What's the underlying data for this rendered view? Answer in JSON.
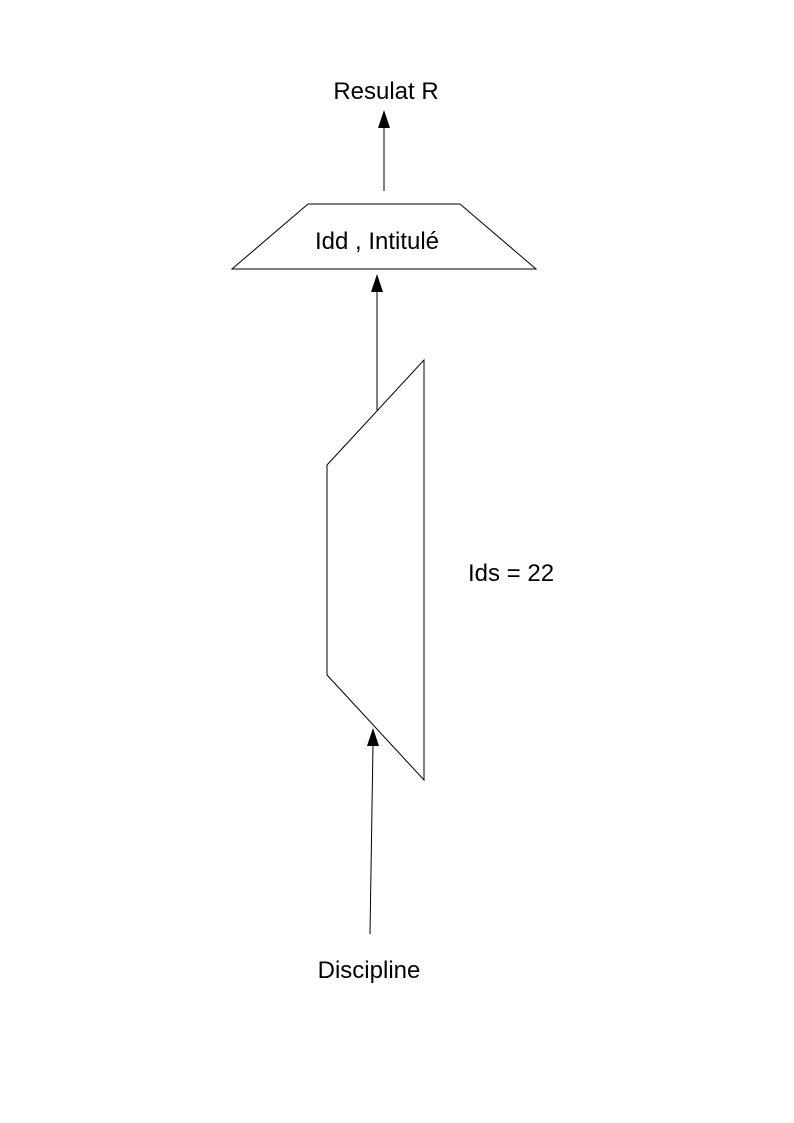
{
  "diagram": {
    "result_label": "Resulat R",
    "projection_label": "Idd , Intitulé",
    "selection_label": "Ids = 22",
    "source_label": "Discipline"
  },
  "colors": {
    "stroke": "#000000",
    "background": "#ffffff"
  }
}
